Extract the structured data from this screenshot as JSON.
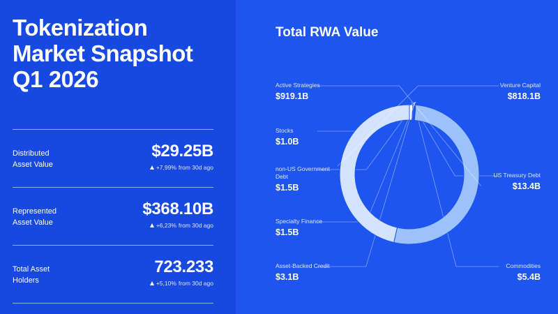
{
  "header": {
    "title": [
      "Tokenization",
      "Market Snapshot",
      "Q1 2026"
    ]
  },
  "stats": [
    {
      "label": [
        "Distributed",
        "Asset Value"
      ],
      "value": "$29.25B",
      "change": "+7,99%",
      "period": "from 30d ago"
    },
    {
      "label": [
        "Represented",
        "Asset Value"
      ],
      "value": "$368.10B",
      "change": "+6,23%",
      "period": "from 30d ago"
    },
    {
      "label": [
        "Total Asset",
        "Holders"
      ],
      "value": "723.233",
      "change": "+5,10%",
      "period": "from 30d ago"
    }
  ],
  "chart_data": {
    "type": "donut",
    "title": "Total RWA Value",
    "categories": [
      "US Treasury Debt",
      "Commodities",
      "Asset-Backed Credit",
      "Specialty Finance",
      "non-US Government Debt",
      "Stocks",
      "Active Strategies",
      "Venture Capital"
    ],
    "values": [
      13.4,
      5.4,
      3.1,
      1.5,
      1.5,
      1.0,
      919.1,
      818.1
    ],
    "value_labels": [
      "$13.4B",
      "$5.4B",
      "$3.1B",
      "$1.5B",
      "$1.5B",
      "$1.0B",
      "$919.1B",
      "$818.1B"
    ],
    "colors": [
      "#ffffff",
      "#5a7ef6",
      "#b9c6fa",
      "#8fb2f9",
      "#6a9ef6",
      "#3f80f2",
      "#9dc2fb",
      "#d3e3fd"
    ]
  }
}
